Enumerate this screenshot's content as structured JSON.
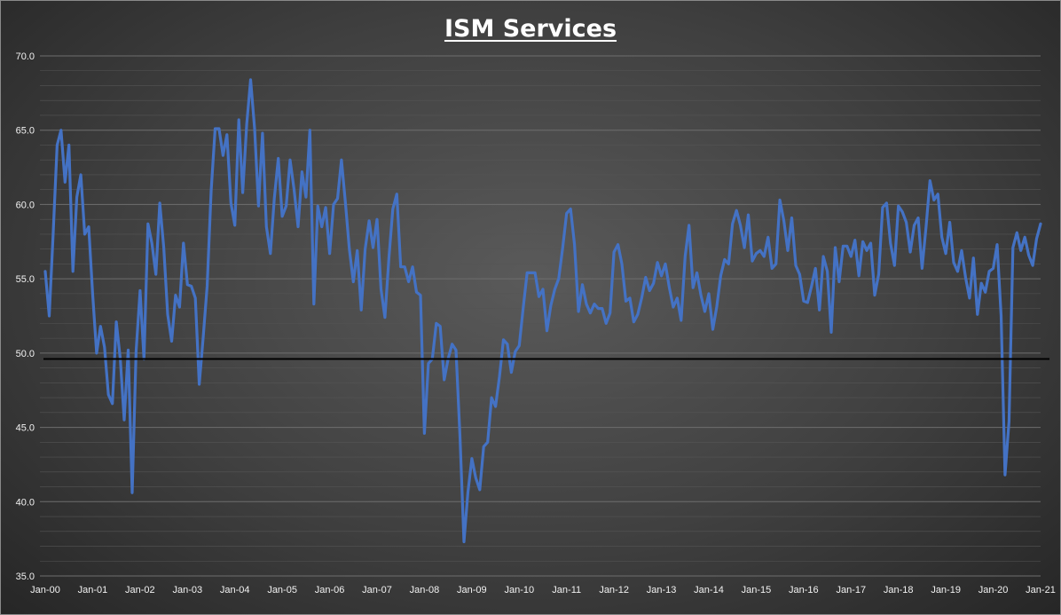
{
  "chart_data": {
    "type": "line",
    "title": "ISM Services",
    "xlabel": "",
    "ylabel": "",
    "ylim": [
      35,
      70
    ],
    "y_ticks": [
      "35.0",
      "40.0",
      "45.0",
      "50.0",
      "55.0",
      "60.0",
      "65.0",
      "70.0"
    ],
    "x_ticks": [
      "Jan-00",
      "Jan-01",
      "Jan-02",
      "Jan-03",
      "Jan-04",
      "Jan-05",
      "Jan-06",
      "Jan-07",
      "Jan-08",
      "Jan-09",
      "Jan-10",
      "Jan-11",
      "Jan-12",
      "Jan-13",
      "Jan-14",
      "Jan-15",
      "Jan-16",
      "Jan-17",
      "Jan-18",
      "Jan-19",
      "Jan-20",
      "Jan-21"
    ],
    "grid": true,
    "reference_line": {
      "y": 49.6,
      "color": "#000000"
    },
    "series": [
      {
        "color": "#4472C4",
        "x_start": "Jan-00",
        "frequency": "monthly",
        "values": [
          55.5,
          52.5,
          58,
          64,
          65,
          61.5,
          64,
          55.5,
          60.5,
          62,
          58,
          58.5,
          54,
          50,
          51.8,
          50.4,
          47.2,
          46.6,
          52.1,
          49.6,
          45.5,
          50.2,
          40.6,
          50.1,
          54.2,
          49.6,
          58.7,
          57.4,
          55.3,
          60.1,
          57.1,
          52.6,
          50.8,
          53.9,
          53.1,
          57.4,
          54.6,
          54.5,
          53.7,
          47.9,
          51.1,
          54.5,
          60.9,
          65.1,
          65.1,
          63.3,
          64.7,
          60.1,
          58.6,
          65.7,
          60.8,
          65.4,
          68.4,
          65.1,
          59.9,
          64.8,
          58.5,
          56.7,
          60.4,
          63.1,
          59.2,
          59.9,
          63,
          61,
          58.5,
          62.2,
          60.5,
          65,
          53.3,
          59.9,
          58.5,
          59.8,
          56.7,
          60,
          60.4,
          63,
          60.1,
          57,
          54.8,
          56.9,
          52.9,
          57,
          58.9,
          57.1,
          59,
          54.3,
          52.4,
          56.4,
          59.7,
          60.7,
          55.8,
          55.8,
          54.8,
          55.8,
          54.1,
          53.9,
          44.6,
          49.3,
          49.6,
          52,
          51.8,
          48.2,
          49.6,
          50.6,
          50.2,
          44.4,
          37.3,
          40.6,
          42.9,
          41.6,
          40.8,
          43.7,
          44,
          47,
          46.4,
          48.4,
          50.9,
          50.6,
          48.7,
          50.1,
          50.5,
          53,
          55.4,
          55.4,
          55.4,
          53.8,
          54.3,
          51.5,
          53.2,
          54.3,
          55,
          57.1,
          59.4,
          59.7,
          57.3,
          52.8,
          54.6,
          53.3,
          52.7,
          53.3,
          53,
          53,
          52,
          52.7,
          56.8,
          57.3,
          56,
          53.5,
          53.7,
          52.1,
          52.6,
          53.7,
          55.1,
          54.2,
          54.7,
          56.1,
          55.2,
          56,
          54.4,
          53.1,
          53.7,
          52.2,
          56.5,
          58.6,
          54.4,
          55.4,
          53.9,
          52.8,
          54,
          51.6,
          53.1,
          55.2,
          56.3,
          56,
          58.7,
          59.6,
          58.6,
          57.1,
          59.3,
          56.2,
          56.7,
          56.9,
          56.5,
          57.8,
          55.7,
          56,
          60.3,
          58.9,
          56.9,
          59.1,
          55.9,
          55.3,
          53.5,
          53.4,
          54.5,
          55.7,
          52.9,
          56.5,
          55.5,
          51.4,
          57.1,
          54.8,
          57.2,
          57.2,
          56.5,
          57.6,
          55.2,
          57.5,
          56.9,
          57.4,
          53.9,
          55.3,
          59.8,
          60.1,
          57.4,
          55.9,
          59.9,
          59.5,
          58.8,
          56.8,
          58.6,
          59.1,
          55.7,
          58.5,
          61.6,
          60.3,
          60.7,
          57.8,
          56.7,
          58.8,
          56.1,
          55.5,
          56.9,
          55.1,
          53.7,
          56.4,
          52.6,
          54.7,
          54.1,
          55.5,
          55.7,
          57.3,
          52.5,
          41.8,
          45.4,
          57.1,
          58.1,
          56.9,
          57.8,
          56.6,
          55.9,
          57.7,
          58.7
        ]
      }
    ]
  }
}
